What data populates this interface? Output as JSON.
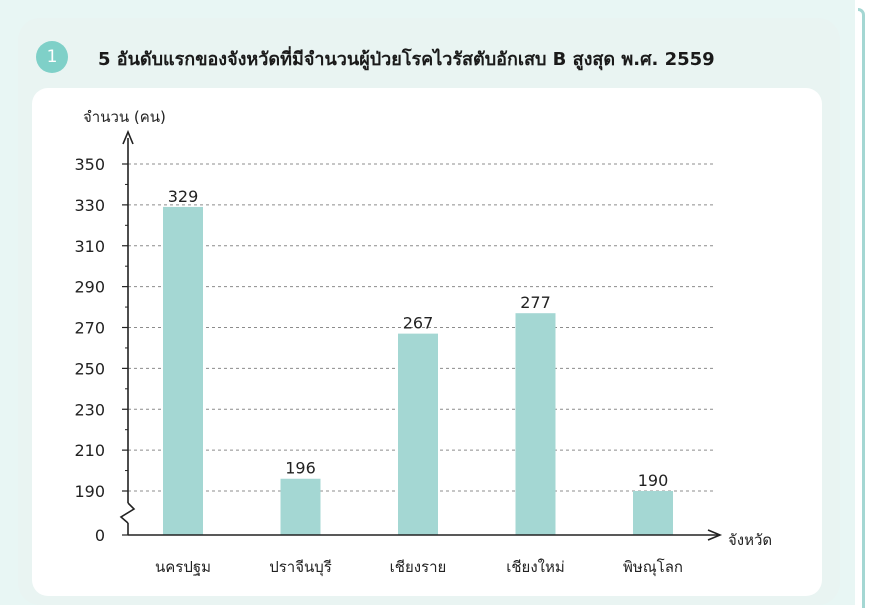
{
  "page": {
    "badge": "1",
    "title": "5 อันดับแรกของจังหวัดที่มีจำนวนผู้ป่วยโรคไวรัสตับอักเสบ B สูงสุด พ.ศ. 2559"
  },
  "chart_data": {
    "type": "bar",
    "title": "5 อันดับแรกของจังหวัดที่มีจำนวนผู้ป่วยโรคไวรัสตับอักเสบ B สูงสุด พ.ศ. 2559",
    "ylabel": "จำนวน (คน)",
    "xlabel": "จังหวัด",
    "categories": [
      "นครปฐม",
      "ปราจีนบุรี",
      "เชียงราย",
      "เชียงใหม่",
      "พิษณุโลก"
    ],
    "values": [
      329,
      196,
      267,
      277,
      190
    ],
    "y_ticks": [
      0,
      190,
      210,
      230,
      250,
      270,
      290,
      310,
      330,
      350
    ],
    "ylim": [
      190,
      350
    ],
    "axis_break": "between 0 and 190",
    "grid": true,
    "bar_color": "#a4d7d3"
  }
}
